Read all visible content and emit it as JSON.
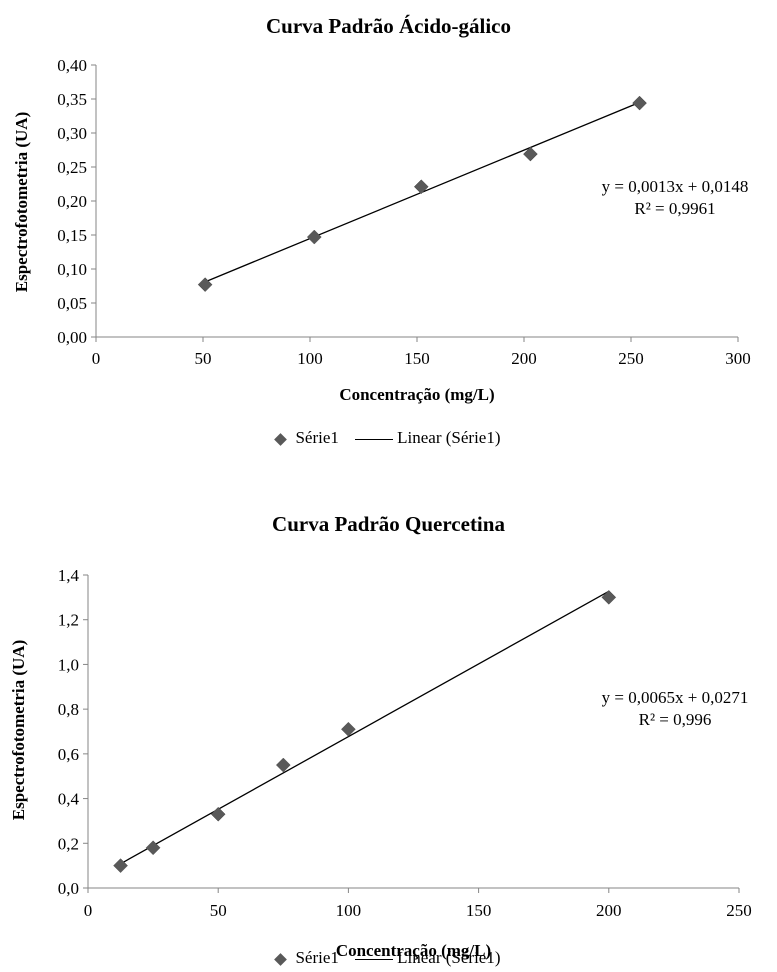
{
  "chart_data": [
    {
      "type": "scatter",
      "title": "Curva Padrão Ácido-gálico",
      "xlabel": "Concentração (mg/L)",
      "ylabel": "Espectrofotometria (UA)",
      "xlim": [
        0,
        300
      ],
      "ylim": [
        0,
        0.4
      ],
      "xticks": [
        "0",
        "50",
        "100",
        "150",
        "200",
        "250",
        "300"
      ],
      "yticks": [
        "0,00",
        "0,05",
        "0,10",
        "0,15",
        "0,20",
        "0,25",
        "0,30",
        "0,35",
        "0,40"
      ],
      "series": [
        {
          "name": "Série1",
          "x": [
            51,
            102,
            152,
            203,
            254
          ],
          "y": [
            0.077,
            0.147,
            0.221,
            0.269,
            0.344
          ]
        }
      ],
      "trendline": {
        "name": "Linear (Série1)",
        "slope": 0.0013,
        "intercept": 0.0148
      },
      "equation": "y = 0,0013x + 0,0148",
      "r2": "R² = 0,9961",
      "legend": [
        "Série1",
        "Linear (Série1)"
      ],
      "legend_position": "bottom",
      "grid": false
    },
    {
      "type": "scatter",
      "title": "Curva Padrão Quercetina",
      "xlabel": "Concentração (mg/L)",
      "ylabel": "Espectrofotometria (UA)",
      "xlim": [
        0,
        250
      ],
      "ylim": [
        0,
        1.4
      ],
      "xticks": [
        "0",
        "50",
        "100",
        "150",
        "200",
        "250"
      ],
      "yticks": [
        "0,0",
        "0,2",
        "0,4",
        "0,6",
        "0,8",
        "1,0",
        "1,2",
        "1,4"
      ],
      "series": [
        {
          "name": "Série1",
          "x": [
            12.5,
            25,
            50,
            75,
            100,
            200
          ],
          "y": [
            0.1,
            0.18,
            0.33,
            0.55,
            0.71,
            1.3
          ]
        }
      ],
      "trendline": {
        "name": "Linear (Série1)",
        "slope": 0.0065,
        "intercept": 0.0271
      },
      "equation": "y = 0,0065x + 0,0271",
      "r2": "R² = 0,996",
      "legend": [
        "Série1",
        "Linear (Série1)"
      ],
      "legend_position": "bottom",
      "grid": false
    }
  ]
}
